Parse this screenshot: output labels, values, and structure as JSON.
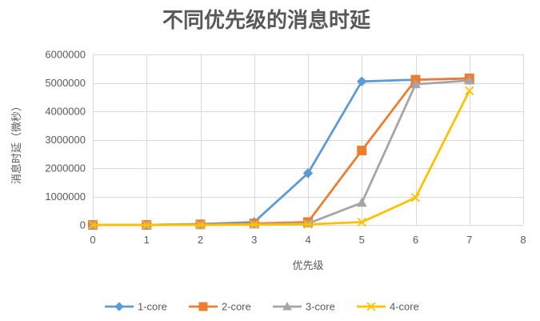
{
  "chart_data": {
    "type": "line",
    "title": "不同优先级的消息时延",
    "xlabel": "优先级",
    "ylabel": "消息时延（微秒）",
    "xlim": [
      0,
      8
    ],
    "ylim": [
      0,
      6000000
    ],
    "x_ticks": [
      0,
      1,
      2,
      3,
      4,
      5,
      6,
      7,
      8
    ],
    "y_ticks": [
      0,
      1000000,
      2000000,
      3000000,
      4000000,
      5000000,
      6000000
    ],
    "x_tick_labels": [
      "0",
      "1",
      "2",
      "3",
      "4",
      "5",
      "6",
      "7",
      "8"
    ],
    "y_tick_labels": [
      "0",
      "1000000",
      "2000000",
      "3000000",
      "4000000",
      "5000000",
      "6000000"
    ],
    "grid": true,
    "legend_position": "bottom",
    "x": [
      0,
      1,
      2,
      3,
      4,
      5,
      6,
      7
    ],
    "series": [
      {
        "name": "1-core",
        "color": "#5B9BD5",
        "marker": "diamond",
        "values": [
          0,
          0,
          30000,
          100000,
          1820000,
          5050000,
          5110000,
          5150000
        ]
      },
      {
        "name": "2-core",
        "color": "#ED7D31",
        "marker": "square",
        "values": [
          0,
          0,
          20000,
          50000,
          100000,
          2620000,
          5110000,
          5160000
        ]
      },
      {
        "name": "3-core",
        "color": "#A5A5A5",
        "marker": "triangle",
        "values": [
          0,
          0,
          10000,
          20000,
          50000,
          780000,
          4950000,
          5080000
        ]
      },
      {
        "name": "4-core",
        "color": "#FFC000",
        "marker": "x",
        "values": [
          0,
          0,
          0,
          10000,
          20000,
          100000,
          960000,
          4720000
        ]
      }
    ]
  }
}
